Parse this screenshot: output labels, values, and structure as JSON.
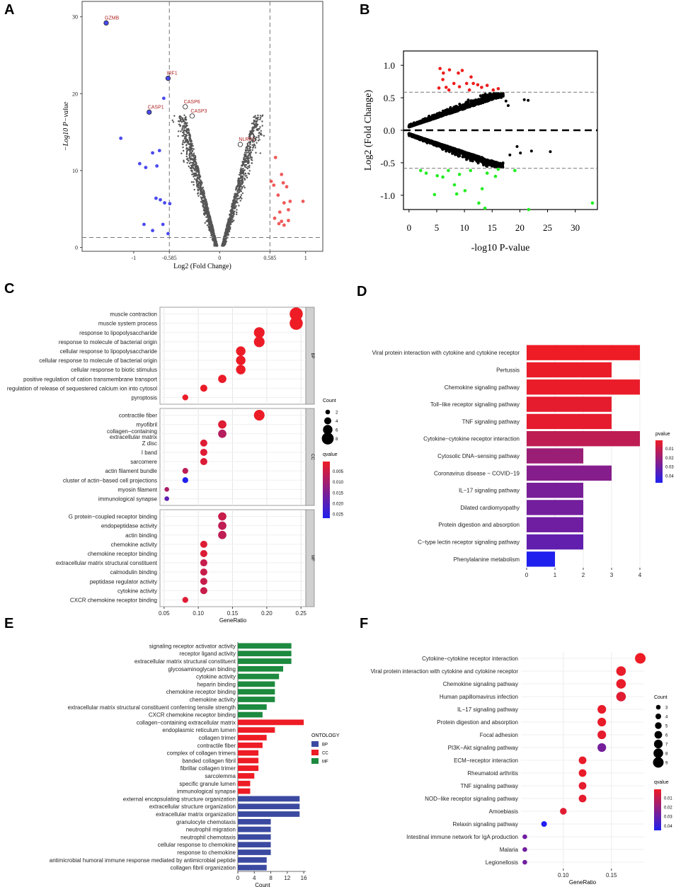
{
  "panels": {
    "a": "A",
    "b": "B",
    "c": "C",
    "d": "D",
    "e": "E",
    "f": "F"
  },
  "colors": {
    "red": "#ee1c25",
    "blue": "#2020ee",
    "green": "#1d8a3f",
    "navy": "#3b4aa0",
    "black": "#000000",
    "lime": "#22ee22",
    "grey": "#555555"
  },
  "chart_data": [
    {
      "id": "A",
      "type": "scatter",
      "title": "",
      "xlabel": "Log2 (Fold Change)",
      "ylabel": "−Log10 P−value",
      "xlim": [
        -1.6,
        1.2
      ],
      "ylim": [
        -0.5,
        32
      ],
      "x_ticks": [
        "-1",
        "-0.585",
        "0",
        "0.585",
        "1"
      ],
      "x_tick_values": [
        -1,
        -0.585,
        0,
        0.585,
        1
      ],
      "y_ticks": [
        "0",
        "10",
        "20",
        "30"
      ],
      "y_tick_values": [
        0,
        10,
        20,
        30
      ],
      "thresholds": {
        "fc": [
          -0.585,
          0.585
        ],
        "p": 1.3
      },
      "down_points": [
        [
          -1.32,
          29.2
        ],
        [
          -0.6,
          22
        ],
        [
          -0.65,
          19.4
        ],
        [
          -0.82,
          17.6
        ],
        [
          -1.15,
          14.2
        ],
        [
          -0.78,
          12.3
        ],
        [
          -0.7,
          12.6
        ],
        [
          -0.93,
          10.9
        ],
        [
          -0.86,
          10.4
        ],
        [
          -0.73,
          10.6
        ],
        [
          -0.74,
          6.4
        ],
        [
          -0.69,
          6.2
        ],
        [
          -0.64,
          5.8
        ],
        [
          -0.58,
          5.7
        ],
        [
          -0.66,
          3
        ],
        [
          -0.88,
          3
        ],
        [
          -0.78,
          2.2
        ],
        [
          -0.6,
          1.8
        ]
      ],
      "up_points": [
        [
          0.65,
          11.7
        ],
        [
          0.72,
          9.5
        ],
        [
          0.6,
          8.6
        ],
        [
          0.74,
          8.4
        ],
        [
          0.63,
          8.1
        ],
        [
          0.78,
          7.9
        ],
        [
          0.68,
          6.8
        ],
        [
          0.82,
          6
        ],
        [
          0.75,
          5.8
        ],
        [
          0.97,
          6
        ],
        [
          0.7,
          4.6
        ],
        [
          0.8,
          4.9
        ],
        [
          0.64,
          3.8
        ],
        [
          0.72,
          3.4
        ],
        [
          0.69,
          3.1
        ],
        [
          0.8,
          3.5
        ],
        [
          0.75,
          2.9
        ]
      ],
      "labels": [
        {
          "text": "GZMB",
          "x": -1.32,
          "y": 29.2
        },
        {
          "text": "IRF1",
          "x": -0.6,
          "y": 22
        },
        {
          "text": "CASP6",
          "x": -0.4,
          "y": 18.3
        },
        {
          "text": "CASP1",
          "x": -0.82,
          "y": 17.6
        },
        {
          "text": "CASP3",
          "x": -0.32,
          "y": 17.1
        },
        {
          "text": "NLRP1",
          "x": 0.24,
          "y": 13.4
        }
      ]
    },
    {
      "id": "B",
      "type": "scatter",
      "title": "",
      "xlabel": "-log10 P-value",
      "ylabel": "Log2 (Fold Change)",
      "xlim": [
        -1,
        34
      ],
      "ylim": [
        -1.22,
        1.22
      ],
      "x_ticks": [
        "0",
        "5",
        "10",
        "15",
        "20",
        "25",
        "30"
      ],
      "x_tick_values": [
        0,
        5,
        10,
        15,
        20,
        25,
        30
      ],
      "y_ticks": [
        "1.0",
        "0.5",
        "0.0",
        "-0.5",
        "-1.0"
      ],
      "y_tick_values": [
        1,
        0.5,
        0,
        -0.5,
        -1
      ],
      "thresholds": {
        "fc": [
          0.585,
          -0.585
        ]
      },
      "up_points": [
        [
          5.6,
          0.95
        ],
        [
          6.2,
          0.88
        ],
        [
          7.3,
          0.93
        ],
        [
          8.1,
          0.72
        ],
        [
          8.9,
          0.88
        ],
        [
          9.6,
          0.92
        ],
        [
          10.4,
          0.72
        ],
        [
          11.6,
          0.72
        ],
        [
          12.4,
          0.7
        ],
        [
          5.4,
          0.65
        ],
        [
          6.7,
          0.66
        ],
        [
          7.2,
          0.62
        ],
        [
          9.1,
          0.67
        ],
        [
          10.9,
          0.62
        ],
        [
          13.1,
          0.66
        ],
        [
          14.1,
          0.69
        ],
        [
          15.2,
          0.62
        ],
        [
          16.1,
          0.64
        ],
        [
          11.2,
          0.82
        ],
        [
          6.1,
          0.78
        ]
      ],
      "down_points": [
        [
          2.1,
          -0.62
        ],
        [
          3.1,
          -0.66
        ],
        [
          4.6,
          -0.99
        ],
        [
          5.1,
          -0.7
        ],
        [
          6.1,
          -0.72
        ],
        [
          7.1,
          -0.62
        ],
        [
          8.2,
          -0.84
        ],
        [
          9.1,
          -0.68
        ],
        [
          10.1,
          -0.93
        ],
        [
          11.1,
          -0.62
        ],
        [
          12.6,
          -1.12
        ],
        [
          13.2,
          -0.9
        ],
        [
          14.1,
          -0.66
        ],
        [
          15.6,
          -0.71
        ],
        [
          16.1,
          -0.6
        ],
        [
          19.1,
          -0.62
        ],
        [
          21.6,
          -1.22
        ],
        [
          33.1,
          -1.12
        ],
        [
          13.7,
          -1.2
        ],
        [
          8.6,
          -0.98
        ]
      ],
      "extra_points": [
        [
          17.5,
          0.45
        ],
        [
          20.8,
          0.47
        ],
        [
          21.5,
          0.46
        ],
        [
          19.5,
          -0.25
        ],
        [
          22.1,
          -0.32
        ],
        [
          25.5,
          -0.33
        ],
        [
          18.2,
          -0.38
        ],
        [
          17.9,
          0.38
        ],
        [
          20.1,
          -0.35
        ]
      ]
    },
    {
      "id": "C",
      "type": "scatter",
      "title": "",
      "xlabel": "GeneRatio",
      "xlim": [
        0.044,
        0.257
      ],
      "x_ticks": [
        "0.05",
        "0.10",
        "0.15",
        "0.20",
        "0.25"
      ],
      "x_tick_values": [
        0.05,
        0.1,
        0.15,
        0.2,
        0.25
      ],
      "facets": [
        {
          "name": "BP",
          "items": [
            {
              "term": "muscle contraction",
              "ratio": 0.243,
              "count": 9,
              "qvalue": 0.0005
            },
            {
              "term": "muscle system process",
              "ratio": 0.243,
              "count": 9,
              "qvalue": 0.0005
            },
            {
              "term": "response to lipopolysaccharide",
              "ratio": 0.189,
              "count": 7,
              "qvalue": 0.0008
            },
            {
              "term": "response to molecule of bacterial origin",
              "ratio": 0.189,
              "count": 7,
              "qvalue": 0.0008
            },
            {
              "term": "cellular response to lipopolysaccharide",
              "ratio": 0.162,
              "count": 6,
              "qvalue": 0.0008
            },
            {
              "term": "cellular response to molecule of bacterial origin",
              "ratio": 0.162,
              "count": 6,
              "qvalue": 0.0008
            },
            {
              "term": "cellular response to biotic stimulus",
              "ratio": 0.162,
              "count": 6,
              "qvalue": 0.0008
            },
            {
              "term": "positive regulation of cation transmembrane transport",
              "ratio": 0.135,
              "count": 5,
              "qvalue": 0.0009
            },
            {
              "term": "regulation of release of sequestered calcium ion into cytosol",
              "ratio": 0.108,
              "count": 4,
              "qvalue": 0.0009
            },
            {
              "term": "pyroptosis",
              "ratio": 0.081,
              "count": 3,
              "qvalue": 0.0009
            }
          ]
        },
        {
          "name": "CC",
          "items": [
            {
              "term": "contractile fiber",
              "ratio": 0.189,
              "count": 7,
              "qvalue": 0.0008
            },
            {
              "term": "myofibril",
              "ratio": 0.135,
              "count": 5,
              "qvalue": 0.0025
            },
            {
              "term": "collagen−containing\nextracellular matrix",
              "ratio": 0.135,
              "count": 5,
              "qvalue": 0.008
            },
            {
              "term": "Z disc",
              "ratio": 0.108,
              "count": 4,
              "qvalue": 0.0025
            },
            {
              "term": "I band",
              "ratio": 0.108,
              "count": 4,
              "qvalue": 0.0025
            },
            {
              "term": "sarcomere",
              "ratio": 0.108,
              "count": 4,
              "qvalue": 0.0028
            },
            {
              "term": "actin filament bundle",
              "ratio": 0.081,
              "count": 3,
              "qvalue": 0.007
            },
            {
              "term": "cluster of actin−based cell projections",
              "ratio": 0.081,
              "count": 3,
              "qvalue": 0.027
            },
            {
              "term": "myosin filament",
              "ratio": 0.054,
              "count": 2,
              "qvalue": 0.009
            },
            {
              "term": "immunological synapse",
              "ratio": 0.054,
              "count": 2,
              "qvalue": 0.019
            }
          ]
        },
        {
          "name": "MF",
          "items": [
            {
              "term": "G protein−coupled receptor binding",
              "ratio": 0.135,
              "count": 5,
              "qvalue": 0.0055
            },
            {
              "term": "endopeptidase activity",
              "ratio": 0.135,
              "count": 5,
              "qvalue": 0.0065
            },
            {
              "term": "actin binding",
              "ratio": 0.135,
              "count": 5,
              "qvalue": 0.0065
            },
            {
              "term": "chemokine activity",
              "ratio": 0.108,
              "count": 4,
              "qvalue": 0.0025
            },
            {
              "term": "chemokine receptor binding",
              "ratio": 0.108,
              "count": 4,
              "qvalue": 0.0028
            },
            {
              "term": "extracellular matrix structural constituent",
              "ratio": 0.108,
              "count": 4,
              "qvalue": 0.0055
            },
            {
              "term": "calmodulin binding",
              "ratio": 0.108,
              "count": 4,
              "qvalue": 0.0055
            },
            {
              "term": "peptidase regulator activity",
              "ratio": 0.108,
              "count": 4,
              "qvalue": 0.0055
            },
            {
              "term": "cytokine activity",
              "ratio": 0.108,
              "count": 4,
              "qvalue": 0.0055
            },
            {
              "term": "CXCR chemokine receptor binding",
              "ratio": 0.081,
              "count": 3,
              "qvalue": 0.0025
            }
          ]
        }
      ],
      "legend_count": {
        "title": "Count",
        "values": [
          "2",
          "4",
          "6",
          "8"
        ]
      },
      "legend_q": {
        "title": "qvalue",
        "values": [
          "0.005",
          "0.010",
          "0.015",
          "0.020",
          "0.025"
        ],
        "range": [
          0.0005,
          0.027
        ]
      }
    },
    {
      "id": "D",
      "type": "bar",
      "orientation": "horizontal",
      "title": "",
      "categories": [
        "Viral protein interaction with cytokine and cytokine receptor",
        "Pertussis",
        "Chemokine signaling pathway",
        "Toll−like receptor signaling pathway",
        "TNF signaling pathway",
        "Cytokine−cytokine receptor interaction",
        "Cytosolic DNA−sensing pathway",
        "Coronavirus disease − COVID−19",
        "IL−17 signaling pathway",
        "Dilated cardiomyopathy",
        "Protein digestion and absorption",
        "C−type lectin receptor signaling pathway",
        "Phenylalanine metabolism"
      ],
      "values": [
        4,
        3,
        4,
        3,
        3,
        4,
        2,
        3,
        2,
        2,
        2,
        2,
        1
      ],
      "pvalues": [
        0.001,
        0.002,
        0.002,
        0.003,
        0.003,
        0.012,
        0.02,
        0.025,
        0.028,
        0.029,
        0.03,
        0.033,
        0.048
      ],
      "xlim": [
        0,
        4.2
      ],
      "x_ticks": [
        "0",
        "1",
        "2",
        "3",
        "4"
      ],
      "x_tick_values": [
        0,
        1,
        2,
        3,
        4
      ],
      "legend": {
        "title": "pvalue",
        "values": [
          "0.01",
          "0.02",
          "0.03",
          "0.04"
        ],
        "range": [
          0.001,
          0.048
        ]
      }
    },
    {
      "id": "E",
      "type": "bar",
      "orientation": "horizontal",
      "title": "",
      "xlabel": "Count",
      "xlim": [
        0,
        16.5
      ],
      "x_ticks": [
        "0",
        "4",
        "8",
        "12",
        "16"
      ],
      "x_tick_values": [
        0,
        4,
        8,
        12,
        16
      ],
      "categories": [
        "signaling receptor activator activity",
        "receptor ligand activity",
        "extracellular matrix structural constituent",
        "glycosaminoglycan binding",
        "cytokine activity",
        "heparin binding",
        "chemokine receptor binding",
        "chemokine activity",
        "extracellular matrix structural constituent conferring tensile strength",
        "CXCR chemokine receptor binding",
        "collagen−containing extracellular matrix",
        "endoplasmic reticulum lumen",
        "collagen trimer",
        "contractile fiber",
        "complex of collagen trimers",
        "banded collagen fibril",
        "fibrillar collagen trimer",
        "sarcolemma",
        "specific granule lumen",
        "immunological synapse",
        "external encapsulating structure organization",
        "extracellular structure organization",
        "extracellular matrix organization",
        "granulocyte chemotaxis",
        "neutrophil migration",
        "neutrophil chemotaxis",
        "cellular response to chemokine",
        "response to chemokine",
        "antimicrobial humoral immune response mediated by antimicrobial peptide",
        "collagen fibril organization"
      ],
      "values": [
        13,
        13,
        13,
        11,
        10,
        9,
        9,
        9,
        7,
        6,
        16,
        9,
        7,
        6,
        5,
        5,
        5,
        4,
        3,
        3,
        15,
        15,
        15,
        8,
        8,
        8,
        8,
        8,
        7,
        7
      ],
      "groups": [
        "MF",
        "MF",
        "MF",
        "MF",
        "MF",
        "MF",
        "MF",
        "MF",
        "MF",
        "MF",
        "CC",
        "CC",
        "CC",
        "CC",
        "CC",
        "CC",
        "CC",
        "CC",
        "CC",
        "CC",
        "BP",
        "BP",
        "BP",
        "BP",
        "BP",
        "BP",
        "BP",
        "BP",
        "BP",
        "BP"
      ],
      "legend": {
        "title": "ONTOLOGY",
        "items": [
          "BP",
          "CC",
          "MF"
        ]
      }
    },
    {
      "id": "F",
      "type": "scatter",
      "title": "",
      "xlabel": "GeneRatio",
      "xlim": [
        0.056,
        0.184
      ],
      "x_ticks": [
        "0.10",
        "0.15"
      ],
      "x_tick_values": [
        0.1,
        0.15
      ],
      "categories": [
        "Cytokine−cytokine receptor interaction",
        "Viral protein interaction with cytokine and cytokine receptor",
        "Chemokine signaling pathway",
        "Human papillomavirus infection",
        "IL−17 signaling pathway",
        "Protein digestion and absorption",
        "Focal adhesion",
        "PI3K−Akt signaling pathway",
        "ECM−receptor interaction",
        "Rheumatoid arthritis",
        "TNF signaling pathway",
        "NOD−like receptor signaling pathway",
        "Amoebiasis",
        "Relaxin signaling pathway",
        "Intestinal immune network for IgA production",
        "Malaria",
        "Legionellosis"
      ],
      "ratios": [
        0.18,
        0.16,
        0.16,
        0.16,
        0.14,
        0.14,
        0.14,
        0.14,
        0.12,
        0.12,
        0.12,
        0.12,
        0.1,
        0.08,
        0.06,
        0.06,
        0.06
      ],
      "counts": [
        9,
        8,
        8,
        8,
        7,
        7,
        7,
        7,
        6,
        6,
        6,
        6,
        5,
        4,
        3,
        3,
        3
      ],
      "qvalues": [
        0.001,
        0.002,
        0.002,
        0.004,
        0.002,
        0.002,
        0.003,
        0.027,
        0.002,
        0.002,
        0.003,
        0.003,
        0.004,
        0.045,
        0.028,
        0.028,
        0.028
      ],
      "legend_count": {
        "title": "Count",
        "values": [
          "3",
          "4",
          "5",
          "6",
          "7",
          "8",
          "9"
        ]
      },
      "legend_q": {
        "title": "qvalue",
        "values": [
          "0.01",
          "0.02",
          "0.03",
          "0.04"
        ],
        "range": [
          0.001,
          0.045
        ]
      }
    }
  ]
}
